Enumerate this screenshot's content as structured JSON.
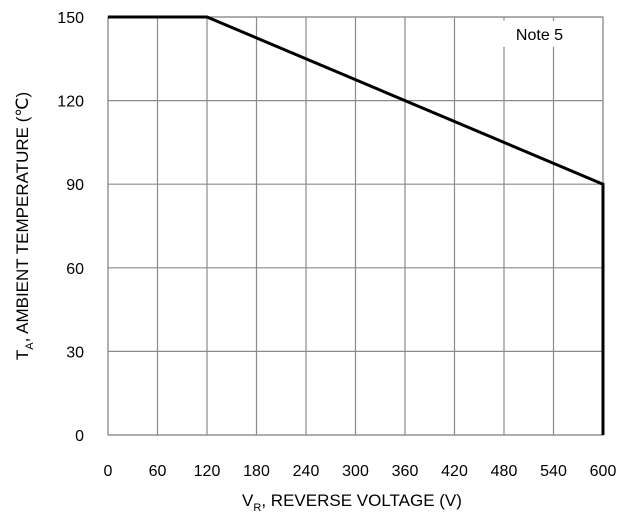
{
  "chart_data": {
    "type": "line",
    "xlabel": {
      "main": "V",
      "sub": "R",
      "rest": ", REVERSE VOLTAGE (V)"
    },
    "ylabel": {
      "main": "T",
      "sub": "A",
      "rest": ", AMBIENT TEMPERATURE (℃)"
    },
    "xlim": [
      0,
      600
    ],
    "ylim": [
      0,
      150
    ],
    "xticks": [
      0,
      60,
      120,
      180,
      240,
      300,
      360,
      420,
      480,
      540,
      600
    ],
    "yticks": [
      0,
      30,
      60,
      90,
      120,
      150
    ],
    "x_tick_labels": [
      "0",
      "60",
      "120",
      "180",
      "240",
      "300",
      "360",
      "420",
      "480",
      "540",
      "600"
    ],
    "y_tick_labels": [
      "0",
      "30",
      "60",
      "90",
      "120",
      "150"
    ],
    "grid": true,
    "series": [
      {
        "x": [
          0,
          120,
          600,
          600
        ],
        "y": [
          150,
          150,
          90,
          0
        ]
      }
    ],
    "annotations": [
      {
        "text": "Note 5",
        "x": 540,
        "y": 135
      }
    ]
  }
}
